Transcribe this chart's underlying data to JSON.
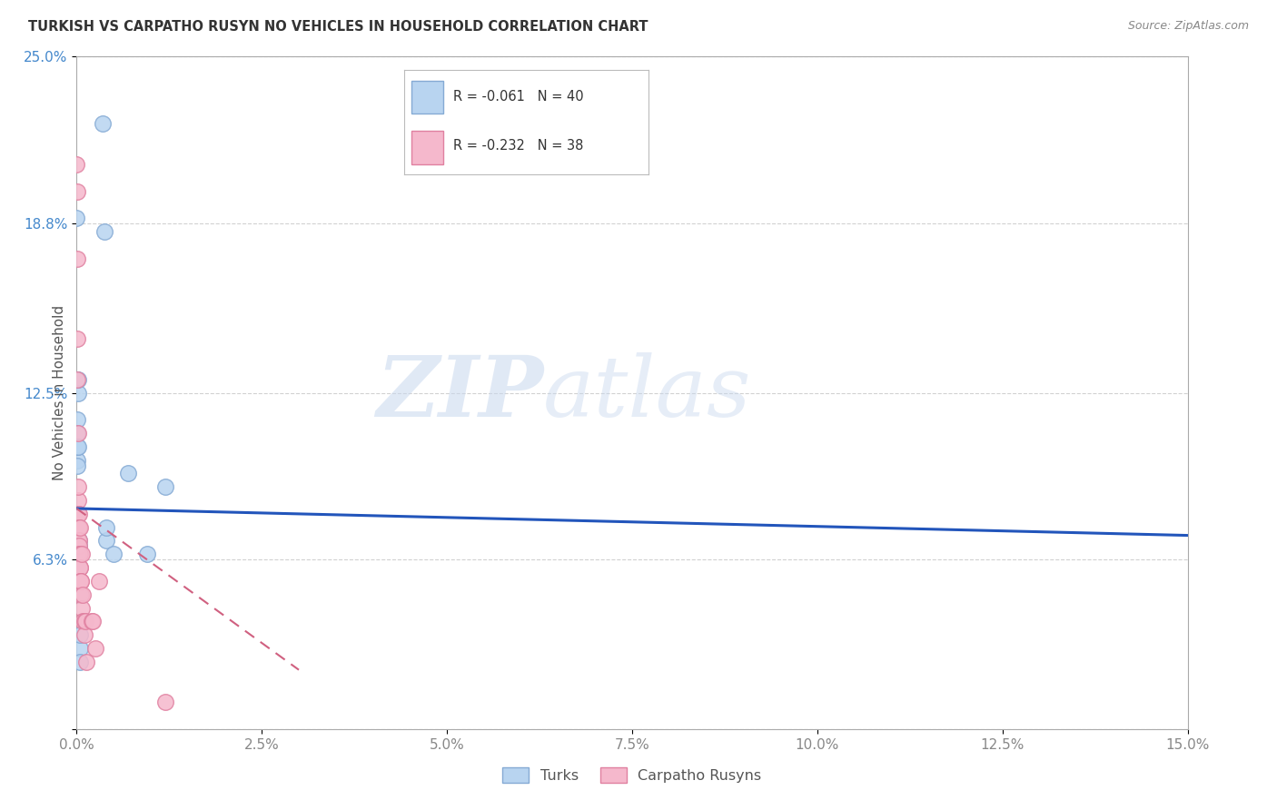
{
  "title": "TURKISH VS CARPATHO RUSYN NO VEHICLES IN HOUSEHOLD CORRELATION CHART",
  "source": "Source: ZipAtlas.com",
  "ylabel": "No Vehicles in Household",
  "watermark": "ZIPatlas",
  "turks_color": "#b8d4f0",
  "turks_edge": "#85aad4",
  "rusyn_color": "#f5b8cc",
  "rusyn_edge": "#e080a0",
  "trend_turks_color": "#2255bb",
  "trend_rusyn_color": "#d06080",
  "background": "#ffffff",
  "turks_x": [
    0.001,
    0.002,
    0.003,
    0.004,
    0.005,
    0.005,
    0.006,
    0.007,
    0.008,
    0.009,
    0.01,
    0.01,
    0.011,
    0.012,
    0.013,
    0.014,
    0.015,
    0.016,
    0.018,
    0.019,
    0.02,
    0.022,
    0.025,
    0.027,
    0.028,
    0.03,
    0.032,
    0.035,
    0.038,
    0.04,
    0.042,
    0.045,
    0.35,
    0.38,
    0.4,
    0.4,
    0.5,
    0.7,
    0.95,
    1.2
  ],
  "turks_y": [
    0.19,
    0.1,
    0.098,
    0.115,
    0.105,
    0.11,
    0.105,
    0.08,
    0.065,
    0.075,
    0.07,
    0.065,
    0.055,
    0.06,
    0.063,
    0.065,
    0.125,
    0.13,
    0.08,
    0.068,
    0.07,
    0.065,
    0.105,
    0.068,
    0.065,
    0.065,
    0.07,
    0.06,
    0.05,
    0.03,
    0.035,
    0.025,
    0.225,
    0.185,
    0.07,
    0.075,
    0.065,
    0.095,
    0.065,
    0.09
  ],
  "rusyn_x": [
    0.001,
    0.002,
    0.005,
    0.01,
    0.01,
    0.015,
    0.015,
    0.02,
    0.02,
    0.02,
    0.02,
    0.025,
    0.03,
    0.03,
    0.03,
    0.03,
    0.03,
    0.04,
    0.04,
    0.04,
    0.05,
    0.05,
    0.06,
    0.06,
    0.06,
    0.07,
    0.07,
    0.08,
    0.08,
    0.1,
    0.1,
    0.12,
    0.13,
    0.2,
    0.22,
    0.25,
    0.3,
    1.2
  ],
  "rusyn_y": [
    0.21,
    0.175,
    0.2,
    0.13,
    0.145,
    0.11,
    0.085,
    0.09,
    0.08,
    0.075,
    0.07,
    0.065,
    0.08,
    0.075,
    0.07,
    0.068,
    0.065,
    0.065,
    0.06,
    0.075,
    0.06,
    0.055,
    0.055,
    0.05,
    0.055,
    0.045,
    0.065,
    0.05,
    0.04,
    0.04,
    0.035,
    0.04,
    0.025,
    0.04,
    0.04,
    0.03,
    0.055,
    0.01
  ],
  "turks_trend_x0": 0.0,
  "turks_trend_y0": 0.082,
  "turks_trend_x1": 0.15,
  "turks_trend_y1": 0.072,
  "rusyn_trend_x0": 0.0,
  "rusyn_trend_y0": 0.082,
  "rusyn_trend_x1": 0.03,
  "rusyn_trend_y1": 0.022,
  "xmin": 0.0,
  "xmax": 0.15,
  "ymin": 0.0,
  "ymax": 0.25,
  "yticks": [
    0.0,
    0.063,
    0.125,
    0.188,
    0.25
  ],
  "ytick_labels": [
    "",
    "6.3%",
    "12.5%",
    "18.8%",
    "25.0%"
  ],
  "xticks": [
    0.0,
    0.025,
    0.05,
    0.075,
    0.1,
    0.125,
    0.15
  ],
  "xtick_labels": [
    "0.0%",
    "2.5%",
    "5.0%",
    "7.5%",
    "10.0%",
    "12.5%",
    "15.0%"
  ],
  "legend_top_label1": "R = -0.061   N = 40",
  "legend_top_label2": "R = -0.232   N = 38",
  "bottom_legend1": "Turks",
  "bottom_legend2": "Carpatho Rusyns"
}
